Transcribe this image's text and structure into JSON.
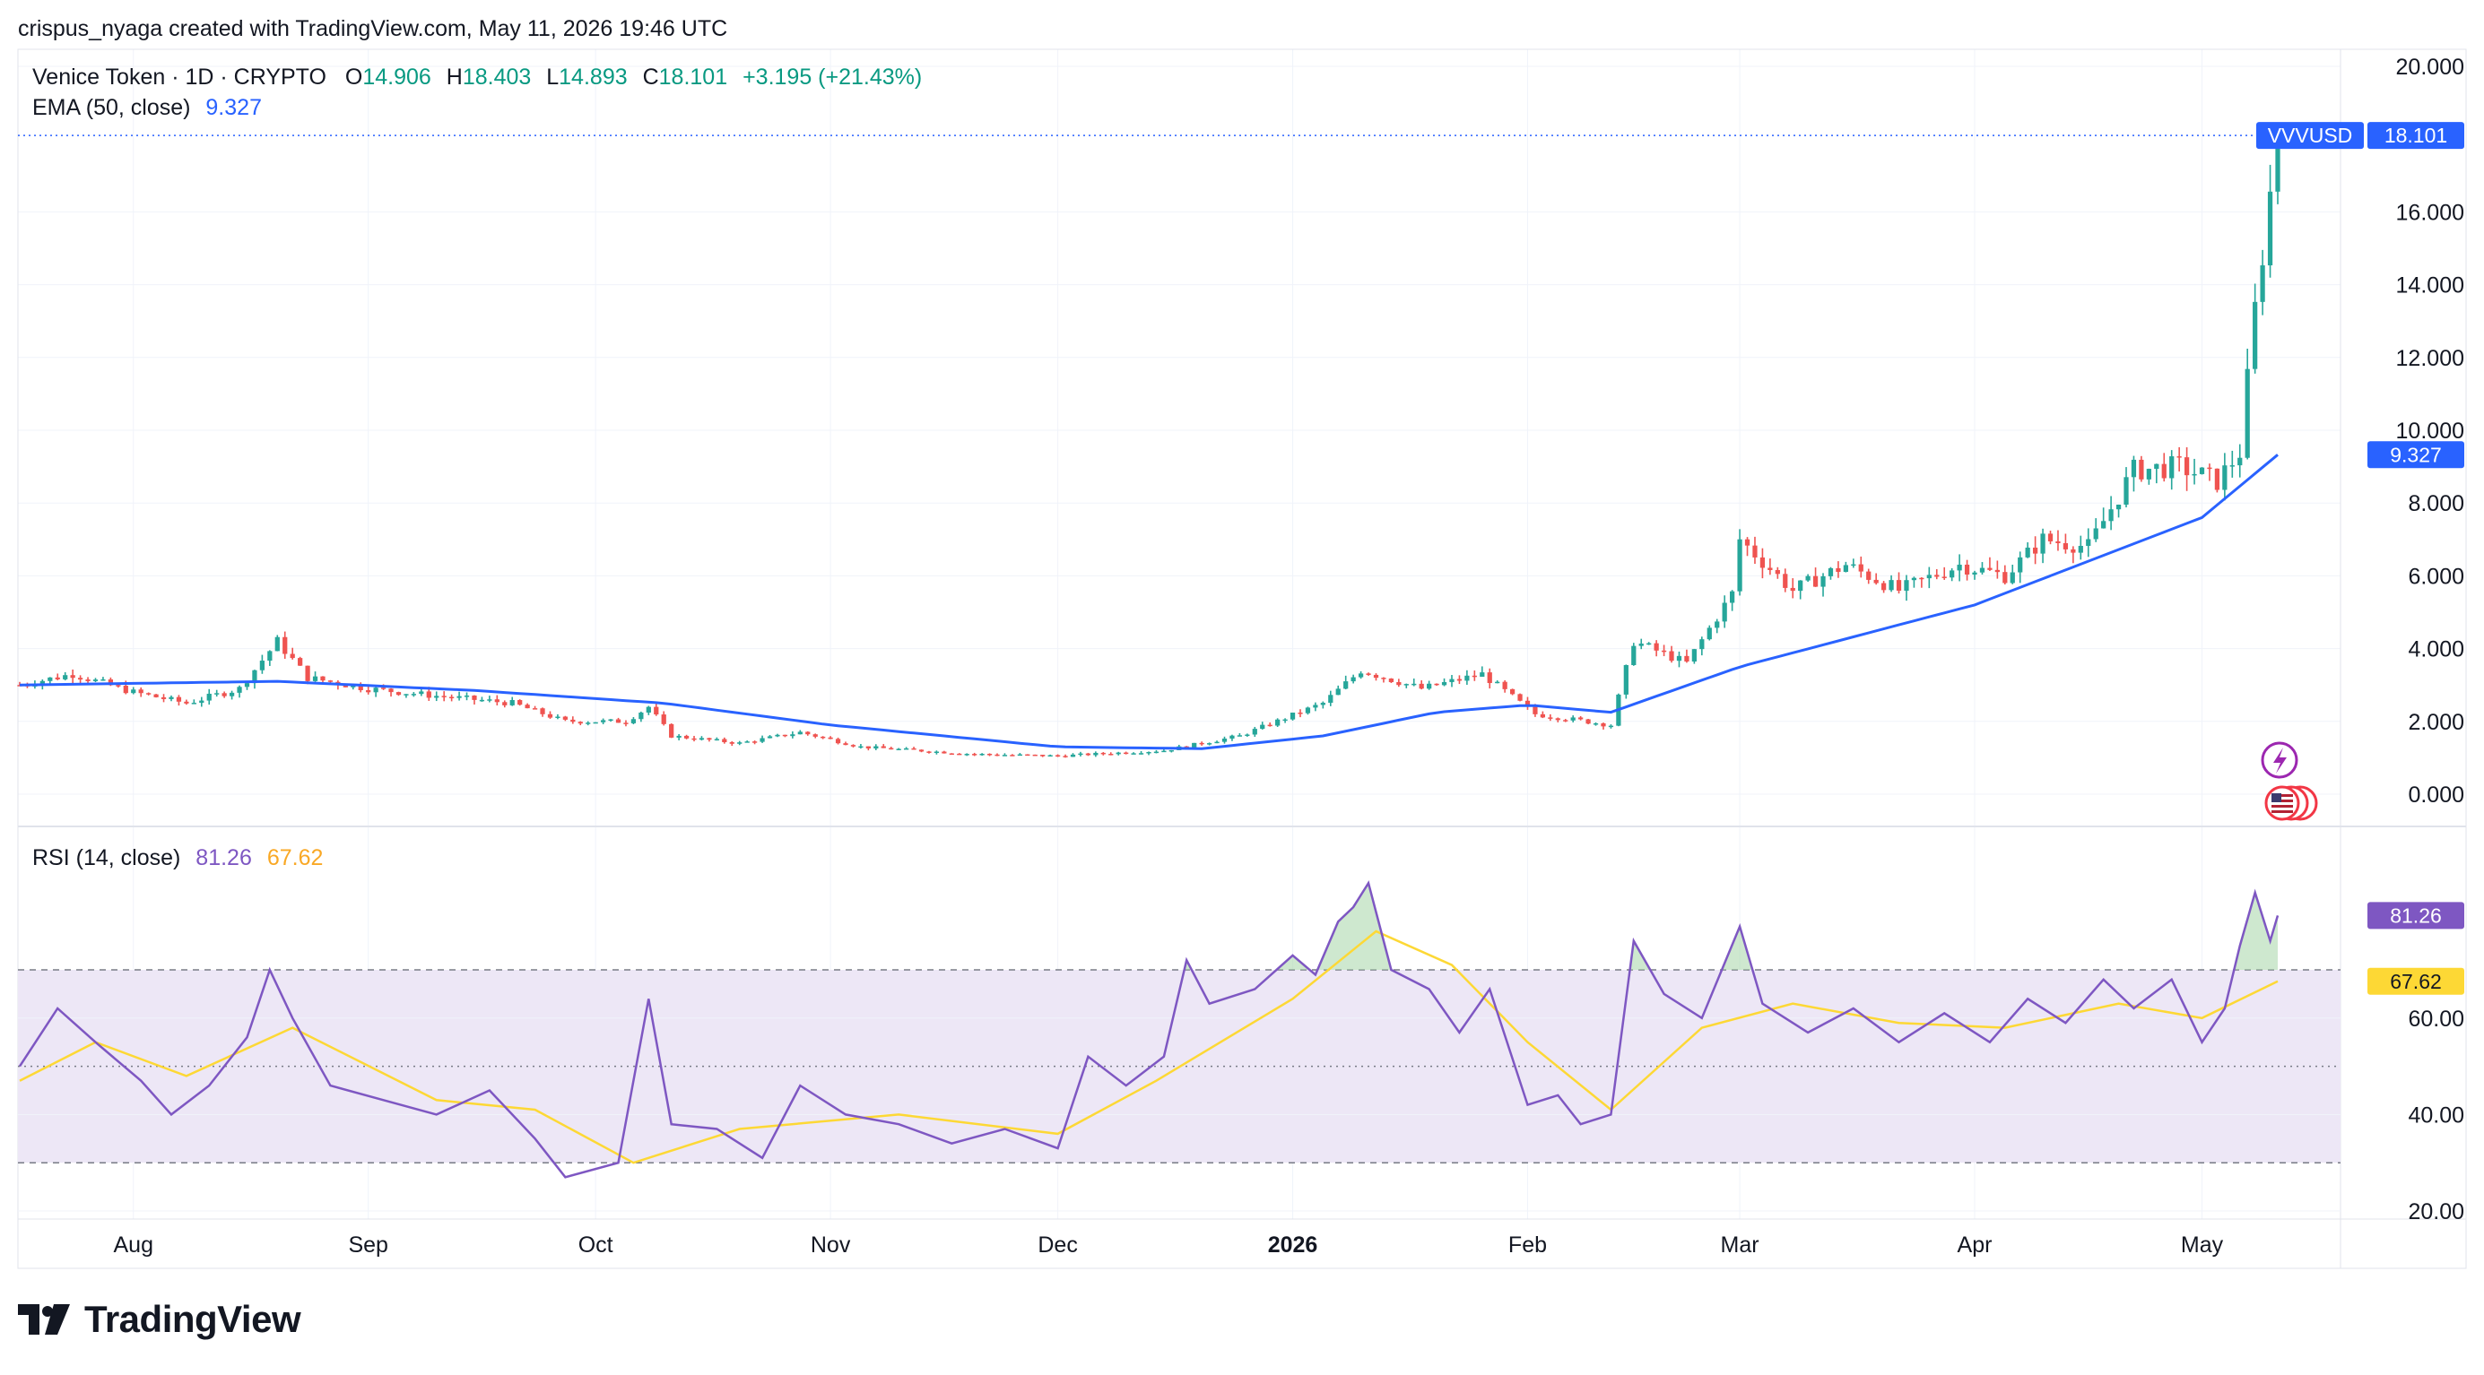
{
  "header": {
    "credit": "crispus_nyaga created with TradingView.com, May 11, 2026 19:46 UTC"
  },
  "legend": {
    "symbol_label": "Venice Token · 1D · CRYPTO",
    "o_label": "O",
    "o_value": "14.906",
    "h_label": "H",
    "h_value": "18.403",
    "l_label": "L",
    "l_value": "14.893",
    "c_label": "C",
    "c_value": "18.101",
    "change": "+3.195 (+21.43%)",
    "ema_label": "EMA (50, close)",
    "ema_value": "9.327",
    "rsi_label": "RSI (14, close)",
    "rsi_value": "81.26",
    "rsi_ma_value": "67.62"
  },
  "badges": {
    "symbol": "VVVUSD",
    "price": "18.101",
    "ema": "9.327",
    "rsi": "81.26",
    "rsi_ma": "67.62"
  },
  "footer": {
    "brand": "TradingView"
  },
  "colors": {
    "up": "#26a69a",
    "down": "#ef5350",
    "ema": "#2962ff",
    "rsi": "#7e57c2",
    "rsi_ma": "#fdd835",
    "price_line": "#2962ff",
    "rsi_band": "#ede7f6",
    "text": "#131722",
    "axis_text": "#131722"
  },
  "chart_data": [
    {
      "type": "candlestick",
      "title": "Venice Token · 1D · CRYPTO",
      "symbol": "VVVUSD",
      "ylim": [
        0,
        20
      ],
      "y_ticks": [
        "0.000",
        "2.000",
        "4.000",
        "6.000",
        "8.000",
        "10.000",
        "12.000",
        "14.000",
        "16.000",
        "20.000"
      ],
      "x_ticks": [
        "Aug",
        "Sep",
        "Oct",
        "Nov",
        "Dec",
        "2026",
        "Feb",
        "Mar",
        "Apr",
        "May"
      ],
      "last_close": 18.101,
      "close_anchors": [
        [
          "2025-07-17",
          3.0
        ],
        [
          "2025-07-24",
          3.3
        ],
        [
          "2025-08-01",
          2.8
        ],
        [
          "2025-08-08",
          2.5
        ],
        [
          "2025-08-15",
          2.9
        ],
        [
          "2025-08-20",
          4.2
        ],
        [
          "2025-08-24",
          3.2
        ],
        [
          "2025-09-01",
          2.9
        ],
        [
          "2025-09-10",
          2.7
        ],
        [
          "2025-09-20",
          2.5
        ],
        [
          "2025-09-27",
          2.0
        ],
        [
          "2025-10-05",
          2.0
        ],
        [
          "2025-10-08",
          2.4
        ],
        [
          "2025-10-11",
          1.6
        ],
        [
          "2025-10-20",
          1.4
        ],
        [
          "2025-10-28",
          1.7
        ],
        [
          "2025-11-05",
          1.3
        ],
        [
          "2025-11-20",
          1.1
        ],
        [
          "2025-12-01",
          1.05
        ],
        [
          "2025-12-15",
          1.2
        ],
        [
          "2025-12-25",
          1.6
        ],
        [
          "2026-01-05",
          2.5
        ],
        [
          "2026-01-10",
          3.4
        ],
        [
          "2026-01-18",
          2.9
        ],
        [
          "2026-01-26",
          3.3
        ],
        [
          "2026-02-02",
          2.2
        ],
        [
          "2026-02-12",
          1.9
        ],
        [
          "2026-02-15",
          4.2
        ],
        [
          "2026-02-22",
          3.6
        ],
        [
          "2026-02-28",
          5.5
        ],
        [
          "2026-03-01",
          7.0
        ],
        [
          "2026-03-08",
          5.6
        ],
        [
          "2026-03-15",
          6.3
        ],
        [
          "2026-03-22",
          5.6
        ],
        [
          "2026-03-30",
          6.3
        ],
        [
          "2026-04-05",
          6.0
        ],
        [
          "2026-04-10",
          7.0
        ],
        [
          "2026-04-16",
          6.8
        ],
        [
          "2026-04-22",
          8.9
        ],
        [
          "2026-04-28",
          9.0
        ],
        [
          "2026-05-03",
          8.6
        ],
        [
          "2026-05-06",
          9.4
        ],
        [
          "2026-05-08",
          13.3
        ],
        [
          "2026-05-09",
          14.9
        ],
        [
          "2026-05-11",
          18.101
        ]
      ],
      "series": [
        {
          "name": "EMA (50, close)",
          "last": 9.327,
          "points": [
            [
              "2025-07-17",
              3.0
            ],
            [
              "2025-08-20",
              3.1
            ],
            [
              "2025-09-15",
              2.85
            ],
            [
              "2025-10-10",
              2.5
            ],
            [
              "2025-11-01",
              1.9
            ],
            [
              "2025-12-01",
              1.3
            ],
            [
              "2025-12-20",
              1.25
            ],
            [
              "2026-01-05",
              1.6
            ],
            [
              "2026-01-20",
              2.25
            ],
            [
              "2026-02-01",
              2.45
            ],
            [
              "2026-02-12",
              2.25
            ],
            [
              "2026-03-01",
              3.5
            ],
            [
              "2026-04-01",
              5.2
            ],
            [
              "2026-05-01",
              7.6
            ],
            [
              "2026-05-11",
              9.327
            ]
          ]
        }
      ]
    },
    {
      "type": "line",
      "title": "RSI (14, close)",
      "ylim": [
        10,
        90
      ],
      "y_ticks": [
        "20.00",
        "40.00",
        "60.00"
      ],
      "bands": [
        30,
        50,
        70
      ],
      "series": [
        {
          "name": "RSI",
          "last": 81.26,
          "points": [
            [
              "2025-07-17",
              50
            ],
            [
              "2025-07-22",
              62
            ],
            [
              "2025-07-27",
              55
            ],
            [
              "2025-08-02",
              47
            ],
            [
              "2025-08-06",
              40
            ],
            [
              "2025-08-11",
              46
            ],
            [
              "2025-08-16",
              56
            ],
            [
              "2025-08-19",
              70
            ],
            [
              "2025-08-22",
              60
            ],
            [
              "2025-08-27",
              46
            ],
            [
              "2025-09-03",
              43
            ],
            [
              "2025-09-10",
              40
            ],
            [
              "2025-09-17",
              45
            ],
            [
              "2025-09-23",
              35
            ],
            [
              "2025-09-27",
              27
            ],
            [
              "2025-10-04",
              30
            ],
            [
              "2025-10-08",
              64
            ],
            [
              "2025-10-11",
              38
            ],
            [
              "2025-10-17",
              37
            ],
            [
              "2025-10-23",
              31
            ],
            [
              "2025-10-28",
              46
            ],
            [
              "2025-11-03",
              40
            ],
            [
              "2025-11-10",
              38
            ],
            [
              "2025-11-17",
              34
            ],
            [
              "2025-11-24",
              37
            ],
            [
              "2025-12-01",
              33
            ],
            [
              "2025-12-05",
              52
            ],
            [
              "2025-12-10",
              46
            ],
            [
              "2025-12-15",
              52
            ],
            [
              "2025-12-18",
              72
            ],
            [
              "2025-12-21",
              63
            ],
            [
              "2025-12-27",
              66
            ],
            [
              "2026-01-01",
              73
            ],
            [
              "2026-01-04",
              69
            ],
            [
              "2026-01-07",
              80
            ],
            [
              "2026-01-09",
              83
            ],
            [
              "2026-01-11",
              88
            ],
            [
              "2026-01-14",
              70
            ],
            [
              "2026-01-19",
              66
            ],
            [
              "2026-01-23",
              57
            ],
            [
              "2026-01-27",
              66
            ],
            [
              "2026-02-01",
              42
            ],
            [
              "2026-02-05",
              44
            ],
            [
              "2026-02-08",
              38
            ],
            [
              "2026-02-12",
              40
            ],
            [
              "2026-02-15",
              76
            ],
            [
              "2026-02-19",
              65
            ],
            [
              "2026-02-24",
              60
            ],
            [
              "2026-03-01",
              79
            ],
            [
              "2026-03-04",
              63
            ],
            [
              "2026-03-10",
              57
            ],
            [
              "2026-03-16",
              62
            ],
            [
              "2026-03-22",
              55
            ],
            [
              "2026-03-28",
              61
            ],
            [
              "2026-04-03",
              55
            ],
            [
              "2026-04-08",
              64
            ],
            [
              "2026-04-13",
              59
            ],
            [
              "2026-04-18",
              68
            ],
            [
              "2026-04-22",
              62
            ],
            [
              "2026-04-27",
              68
            ],
            [
              "2026-05-01",
              55
            ],
            [
              "2026-05-04",
              62
            ],
            [
              "2026-05-06",
              75
            ],
            [
              "2026-05-08",
              86
            ],
            [
              "2026-05-10",
              76
            ],
            [
              "2026-05-11",
              81.26
            ]
          ]
        },
        {
          "name": "RSI MA",
          "last": 67.62,
          "points": [
            [
              "2025-07-17",
              47
            ],
            [
              "2025-07-27",
              55
            ],
            [
              "2025-08-08",
              48
            ],
            [
              "2025-08-22",
              58
            ],
            [
              "2025-09-10",
              43
            ],
            [
              "2025-09-23",
              41
            ],
            [
              "2025-10-06",
              30
            ],
            [
              "2025-10-20",
              37
            ],
            [
              "2025-11-10",
              40
            ],
            [
              "2025-12-01",
              36
            ],
            [
              "2025-12-14",
              47
            ],
            [
              "2026-01-01",
              64
            ],
            [
              "2026-01-12",
              78
            ],
            [
              "2026-01-22",
              71
            ],
            [
              "2026-02-01",
              55
            ],
            [
              "2026-02-12",
              41
            ],
            [
              "2026-02-24",
              58
            ],
            [
              "2026-03-08",
              63
            ],
            [
              "2026-03-22",
              59
            ],
            [
              "2026-04-05",
              58
            ],
            [
              "2026-04-20",
              63
            ],
            [
              "2026-05-01",
              60
            ],
            [
              "2026-05-11",
              67.62
            ]
          ]
        }
      ]
    }
  ]
}
